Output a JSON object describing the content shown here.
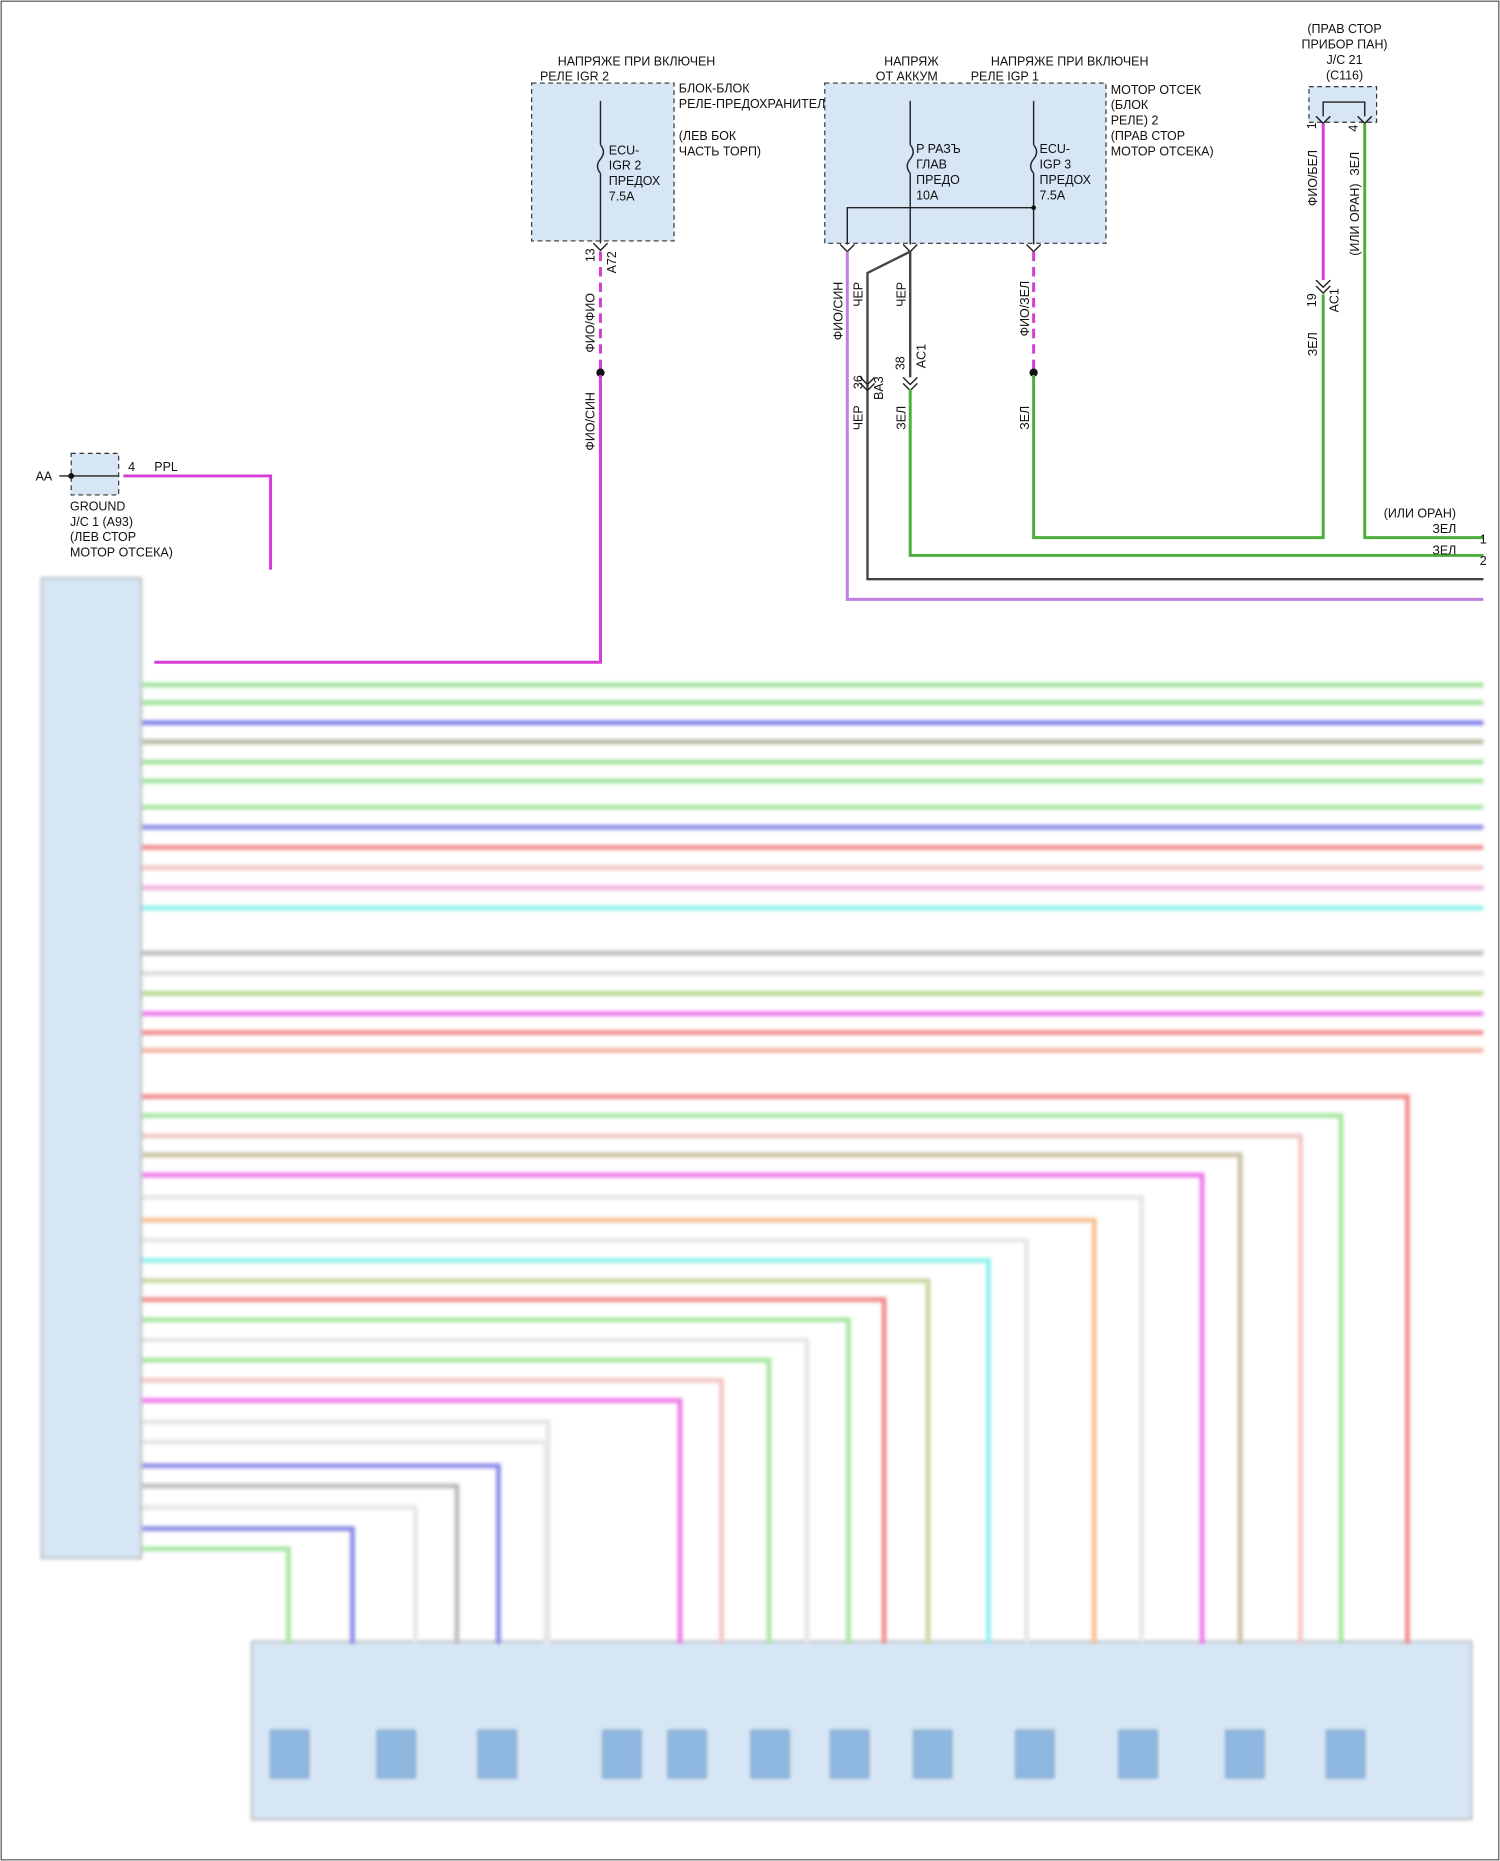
{
  "ground": {
    "connector_id": "AA",
    "pin": "4",
    "wire": "PPL",
    "name": [
      "GROUND",
      "J/C 1 (A93)",
      "(ЛЕВ СТОР",
      "МОТОР ОТСЕКА)"
    ]
  },
  "igr2_block": {
    "supply": [
      "НАПРЯЖЕ ПРИ ВКЛЮЧЕН",
      "РЕЛЕ IGR 2"
    ],
    "name": [
      "БЛОК-БЛОК",
      "РЕЛЕ-ПРЕДОХРАНИТЕЛЯ"
    ],
    "location": [
      "(ЛЕВ БОК",
      "ЧАСТЬ ТОРП)"
    ],
    "fuse": [
      "ECU-",
      "IGR 2",
      "ПРЕДОХ",
      "7.5A"
    ],
    "pin": "13",
    "connector": "A72",
    "wire_upper": "ФИО/ФИО",
    "wire_lower": "ФИО/СИН"
  },
  "engine_block": {
    "supply_battery": [
      "НАПРЯЖ",
      "ОТ АККУМ"
    ],
    "supply_igp": [
      "НАПРЯЖЕ ПРИ ВКЛЮЧЕН",
      "РЕЛЕ IGP 1"
    ],
    "name": [
      "МОТОР ОТСЕК",
      "(БЛОК",
      "РЕЛЕ) 2",
      "(ПРАВ СТОР",
      "МОТОР ОТСЕКА)"
    ],
    "fuse_main": [
      "P РАЗЪ",
      "ГЛАВ",
      "ПРЕДО",
      "10A"
    ],
    "fuse_igp3": [
      "ECU-",
      "IGP 3",
      "ПРЕДОХ",
      "7.5A"
    ],
    "wires": [
      "ФИО/СИН",
      "ЧЕР",
      "ЧЕР",
      "ФИО/ЗЕЛ"
    ],
    "inline_connectors": [
      {
        "pin": "36",
        "id": "BA3"
      },
      {
        "pin": "38",
        "id": "AC1"
      }
    ],
    "lower_wires": [
      "ЧЕР",
      "ЗЕЛ",
      "ЗЕЛ"
    ]
  },
  "jc21": {
    "name": [
      "(ПРАВ СТОР",
      "ПРИБОР ПАН)",
      "J/C 21",
      "(C116)"
    ],
    "pins": [
      "1",
      "4"
    ],
    "wires": [
      "ФИО/БЕЛ",
      "ЗЕЛ",
      "(ИЛИ ОРАН)"
    ],
    "inline": {
      "pin": "19",
      "id": "AC1"
    },
    "lower_wire": "ЗЕЛ"
  },
  "right_terminals": [
    {
      "note": "(ИЛИ ОРАН)",
      "wire": "ЗЕЛ",
      "pin": "1"
    },
    {
      "wire": "ЗЕЛ",
      "pin": "2"
    }
  ]
}
